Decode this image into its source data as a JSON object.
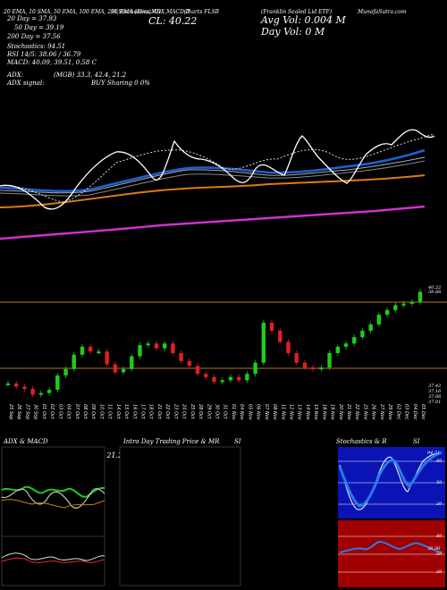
{
  "header": {
    "ema_line": "20 EMA, 10 SMA, 50 EMA, 100 EMA, 200 EMA (Ema) ADX,MACD,B",
    "stoch_line": "SI,Stochastics,MR",
    "chart_title": "Charts FLSB",
    "company": "(Franklin Sealed Lid ETF)",
    "munafa": "MunafaSutra.com",
    "cl": "CL: 40.22",
    "avg_vol": "Avg Vol: 0.004  M",
    "day_vol": "Day Vol: 0   M",
    "ema20": "20 Day = 37.93",
    "ema50": "50 Day = 39.19",
    "ema200": "200 Day = 37.56",
    "stoch": "Stochastics: 94.51",
    "rsi": "RSI 14/5: 38.06  / 36.79",
    "macd": "MACD: 40.09, 39.51, 0.58  C",
    "adx": "ADX:",
    "adx_vals": "(MGB) 33.3, 42.4, 21.2",
    "adx_signal": "ADX signal:",
    "buy": "BUY Sharing 0 0%"
  },
  "price_labels": {
    "right_top": "40.22",
    "right_top2": "39.88",
    "right_low1": "37.42",
    "right_low2": "37.16",
    "right_low3": "37.06",
    "right_low4": "37.01"
  },
  "dates": [
    "25 Sep",
    "26 Sep",
    "27 Sep",
    "30 Sep",
    "01 Oct",
    "02 Oct",
    "03 Oct",
    "04 Oct",
    "07 Oct",
    "08 Oct",
    "09 Oct",
    "10 Oct",
    "11 Oct",
    "14 Oct",
    "15 Oct",
    "16 Oct",
    "17 Oct",
    "18 Oct",
    "21 Oct",
    "22 Oct",
    "23 Oct",
    "24 Oct",
    "25 Oct",
    "28 Oct",
    "29 Oct",
    "30 Oct",
    "31 Oct",
    "01 Nov",
    "04 Nov",
    "05 Nov",
    "06 Nov",
    "07 Nov",
    "08 Nov",
    "11 Nov",
    "12 Nov",
    "13 Nov",
    "14 Nov",
    "15 Nov",
    "18 Nov",
    "19 Nov",
    "20 Nov",
    "21 Nov",
    "22 Nov",
    "25 Nov",
    "26 Nov",
    "27 Nov",
    "29 Nov",
    "02 Dec",
    "03 Dec",
    "04 Dec",
    "05 Dec"
  ],
  "panels": {
    "adx_title": "ADX  & MACD",
    "adx_vals": "ADX: 33.33  +DY: 42.42  -DY: 21.21",
    "intra_title": "Intra  Day Trading Price  & MR",
    "intra_si": "SI",
    "stoch_title": "Stochastics & R",
    "stoch_si": "SI",
    "stoch_val": "94.51",
    "rsi_val": "38.06",
    "stoch_ticks": [
      "80",
      "50",
      "20"
    ],
    "rsi_ticks": [
      "80",
      "50",
      "20"
    ]
  },
  "chart_data": {
    "type": "candlestick",
    "x": [
      "25 Sep",
      "26 Sep",
      "27 Sep",
      "30 Sep",
      "01 Oct",
      "02 Oct",
      "03 Oct",
      "04 Oct",
      "07 Oct",
      "08 Oct",
      "09 Oct",
      "10 Oct",
      "11 Oct",
      "14 Oct",
      "15 Oct",
      "16 Oct",
      "17 Oct",
      "18 Oct",
      "21 Oct",
      "22 Oct",
      "23 Oct",
      "24 Oct",
      "25 Oct",
      "28 Oct",
      "29 Oct",
      "30 Oct",
      "31 Oct",
      "01 Nov",
      "04 Nov",
      "05 Nov",
      "06 Nov",
      "07 Nov",
      "08 Nov",
      "11 Nov",
      "12 Nov",
      "13 Nov",
      "14 Nov",
      "15 Nov",
      "18 Nov",
      "19 Nov",
      "20 Nov",
      "21 Nov",
      "22 Nov",
      "25 Nov",
      "26 Nov",
      "27 Nov",
      "29 Nov",
      "02 Dec",
      "03 Dec",
      "04 Dec",
      "05 Dec"
    ],
    "close": [
      37.35,
      37.25,
      37.18,
      37.0,
      37.05,
      37.15,
      37.6,
      37.8,
      38.25,
      38.5,
      38.35,
      38.35,
      37.95,
      37.7,
      37.8,
      38.2,
      38.55,
      38.6,
      38.45,
      38.6,
      38.3,
      38.05,
      37.9,
      37.65,
      37.55,
      37.4,
      37.45,
      37.55,
      37.45,
      37.65,
      38.0,
      39.25,
      39.0,
      38.65,
      38.3,
      38.0,
      37.85,
      37.8,
      37.85,
      38.3,
      38.5,
      38.6,
      38.8,
      39.0,
      39.2,
      39.5,
      39.65,
      39.8,
      39.85,
      39.9,
      40.22
    ],
    "ylim": [
      36.9,
      40.4
    ]
  }
}
